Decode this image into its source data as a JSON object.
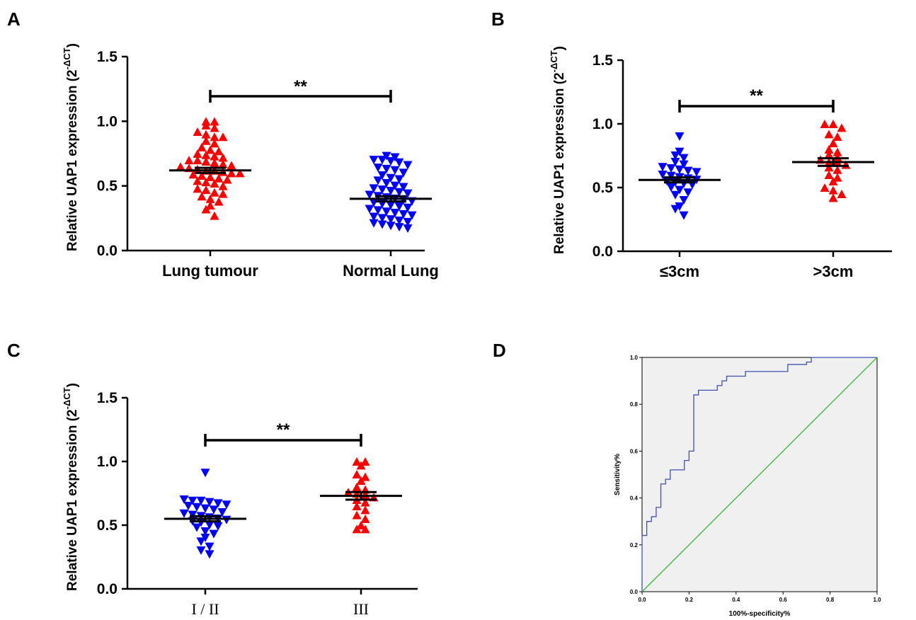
{
  "chart_data": [
    {
      "panel": "A",
      "type": "scatter",
      "ylabel": "Relative UAP1 expression (2",
      "ylabel_sup": "-ΔCT",
      "ylabel_close": ")",
      "yticks": [
        "0.0",
        "0.5",
        "1.0",
        "1.5"
      ],
      "ylim": [
        0,
        1.5
      ],
      "categories": [
        "Lung tumour",
        "Normal Lung"
      ],
      "significance": "**",
      "series": [
        {
          "marker": "triangle-up",
          "color": "#ff0000",
          "mean": 0.62,
          "sem": 0.02,
          "values": [
            1.0,
            1.0,
            0.97,
            0.95,
            0.92,
            0.9,
            0.88,
            0.88,
            0.85,
            0.83,
            0.8,
            0.78,
            0.77,
            0.75,
            0.74,
            0.73,
            0.72,
            0.7,
            0.7,
            0.69,
            0.68,
            0.67,
            0.66,
            0.65,
            0.64,
            0.63,
            0.62,
            0.62,
            0.61,
            0.6,
            0.6,
            0.59,
            0.58,
            0.57,
            0.56,
            0.55,
            0.54,
            0.53,
            0.52,
            0.5,
            0.48,
            0.47,
            0.45,
            0.44,
            0.42,
            0.4,
            0.38,
            0.35,
            0.32,
            0.27
          ]
        },
        {
          "marker": "triangle-down",
          "color": "#0000ff",
          "mean": 0.4,
          "sem": 0.02,
          "values": [
            0.73,
            0.72,
            0.7,
            0.7,
            0.69,
            0.68,
            0.66,
            0.64,
            0.63,
            0.62,
            0.6,
            0.58,
            0.56,
            0.55,
            0.54,
            0.52,
            0.5,
            0.49,
            0.48,
            0.47,
            0.46,
            0.45,
            0.44,
            0.43,
            0.42,
            0.41,
            0.4,
            0.39,
            0.38,
            0.37,
            0.36,
            0.35,
            0.34,
            0.33,
            0.32,
            0.31,
            0.3,
            0.29,
            0.28,
            0.27,
            0.26,
            0.25,
            0.24,
            0.23,
            0.22,
            0.21,
            0.2,
            0.19,
            0.18,
            0.17
          ]
        }
      ]
    },
    {
      "panel": "B",
      "type": "scatter",
      "ylabel": "Relative UAP1 expression (2",
      "ylabel_sup": "-ΔCT",
      "ylabel_close": ")",
      "yticks": [
        "0.0",
        "0.5",
        "1.0",
        "1.5"
      ],
      "ylim": [
        0,
        1.5
      ],
      "categories": [
        "≤3cm",
        ">3cm"
      ],
      "significance": "**",
      "series": [
        {
          "marker": "triangle-down",
          "color": "#0000ff",
          "mean": 0.56,
          "sem": 0.02,
          "values": [
            0.9,
            0.78,
            0.75,
            0.73,
            0.7,
            0.68,
            0.66,
            0.65,
            0.64,
            0.63,
            0.62,
            0.6,
            0.59,
            0.58,
            0.57,
            0.56,
            0.55,
            0.54,
            0.53,
            0.52,
            0.5,
            0.48,
            0.46,
            0.44,
            0.4,
            0.35,
            0.33,
            0.28
          ]
        },
        {
          "marker": "triangle-up",
          "color": "#ff0000",
          "mean": 0.7,
          "sem": 0.03,
          "values": [
            1.0,
            1.0,
            0.97,
            0.92,
            0.9,
            0.85,
            0.8,
            0.78,
            0.76,
            0.74,
            0.72,
            0.7,
            0.7,
            0.68,
            0.66,
            0.64,
            0.6,
            0.58,
            0.55,
            0.5,
            0.48,
            0.45,
            0.42
          ]
        }
      ]
    },
    {
      "panel": "C",
      "type": "scatter",
      "ylabel": "Relative UAP1 expression (2",
      "ylabel_sup": "-ΔCT",
      "ylabel_close": ")",
      "yticks": [
        "0.0",
        "0.5",
        "1.0",
        "1.5"
      ],
      "ylim": [
        0,
        1.5
      ],
      "categories": [
        "I / II",
        "III"
      ],
      "significance": "**",
      "series": [
        {
          "marker": "triangle-down",
          "color": "#0000ff",
          "mean": 0.55,
          "sem": 0.02,
          "values": [
            0.91,
            0.7,
            0.69,
            0.69,
            0.68,
            0.67,
            0.66,
            0.65,
            0.64,
            0.63,
            0.62,
            0.6,
            0.59,
            0.58,
            0.57,
            0.56,
            0.55,
            0.54,
            0.53,
            0.52,
            0.5,
            0.49,
            0.48,
            0.45,
            0.43,
            0.4,
            0.37,
            0.33,
            0.3,
            0.27
          ]
        },
        {
          "marker": "triangle-up",
          "color": "#ff0000",
          "mean": 0.73,
          "sem": 0.03,
          "values": [
            1.0,
            1.0,
            0.97,
            0.9,
            0.88,
            0.85,
            0.8,
            0.78,
            0.76,
            0.75,
            0.74,
            0.72,
            0.7,
            0.68,
            0.65,
            0.62,
            0.58,
            0.55,
            0.5,
            0.47,
            0.47
          ]
        }
      ]
    },
    {
      "panel": "D",
      "type": "line",
      "xlabel": "100%-specificity%",
      "ylabel": "Sensitivity%",
      "xticks": [
        "0.0",
        "0.2",
        "0.4",
        "0.6",
        "0.8",
        "1.0"
      ],
      "yticks": [
        "0.0",
        "0.2",
        "0.4",
        "0.6",
        "0.8",
        "1.0"
      ],
      "xlim": [
        0,
        1
      ],
      "ylim": [
        0,
        1
      ],
      "series": [
        {
          "name": "",
          "color": "#4050b0",
          "x": [
            0.0,
            0.0,
            0.02,
            0.02,
            0.04,
            0.04,
            0.06,
            0.06,
            0.08,
            0.08,
            0.1,
            0.1,
            0.12,
            0.12,
            0.16,
            0.16,
            0.18,
            0.18,
            0.2,
            0.2,
            0.22,
            0.22,
            0.24,
            0.24,
            0.32,
            0.32,
            0.34,
            0.34,
            0.36,
            0.36,
            0.44,
            0.44,
            0.58,
            0.58,
            0.62,
            0.62,
            0.7,
            0.7,
            0.72,
            0.72,
            1.0
          ],
          "y": [
            0.0,
            0.24,
            0.24,
            0.3,
            0.3,
            0.32,
            0.32,
            0.36,
            0.36,
            0.46,
            0.46,
            0.48,
            0.48,
            0.52,
            0.52,
            0.52,
            0.52,
            0.56,
            0.56,
            0.6,
            0.6,
            0.84,
            0.84,
            0.86,
            0.86,
            0.88,
            0.88,
            0.9,
            0.9,
            0.92,
            0.92,
            0.94,
            0.94,
            0.94,
            0.94,
            0.97,
            0.97,
            0.98,
            0.98,
            1.0,
            1.0
          ]
        },
        {
          "name": "",
          "color": "#33bb33",
          "x": [
            0,
            1
          ],
          "y": [
            0,
            1
          ]
        }
      ],
      "plot_background": "#f0f0f0"
    }
  ]
}
